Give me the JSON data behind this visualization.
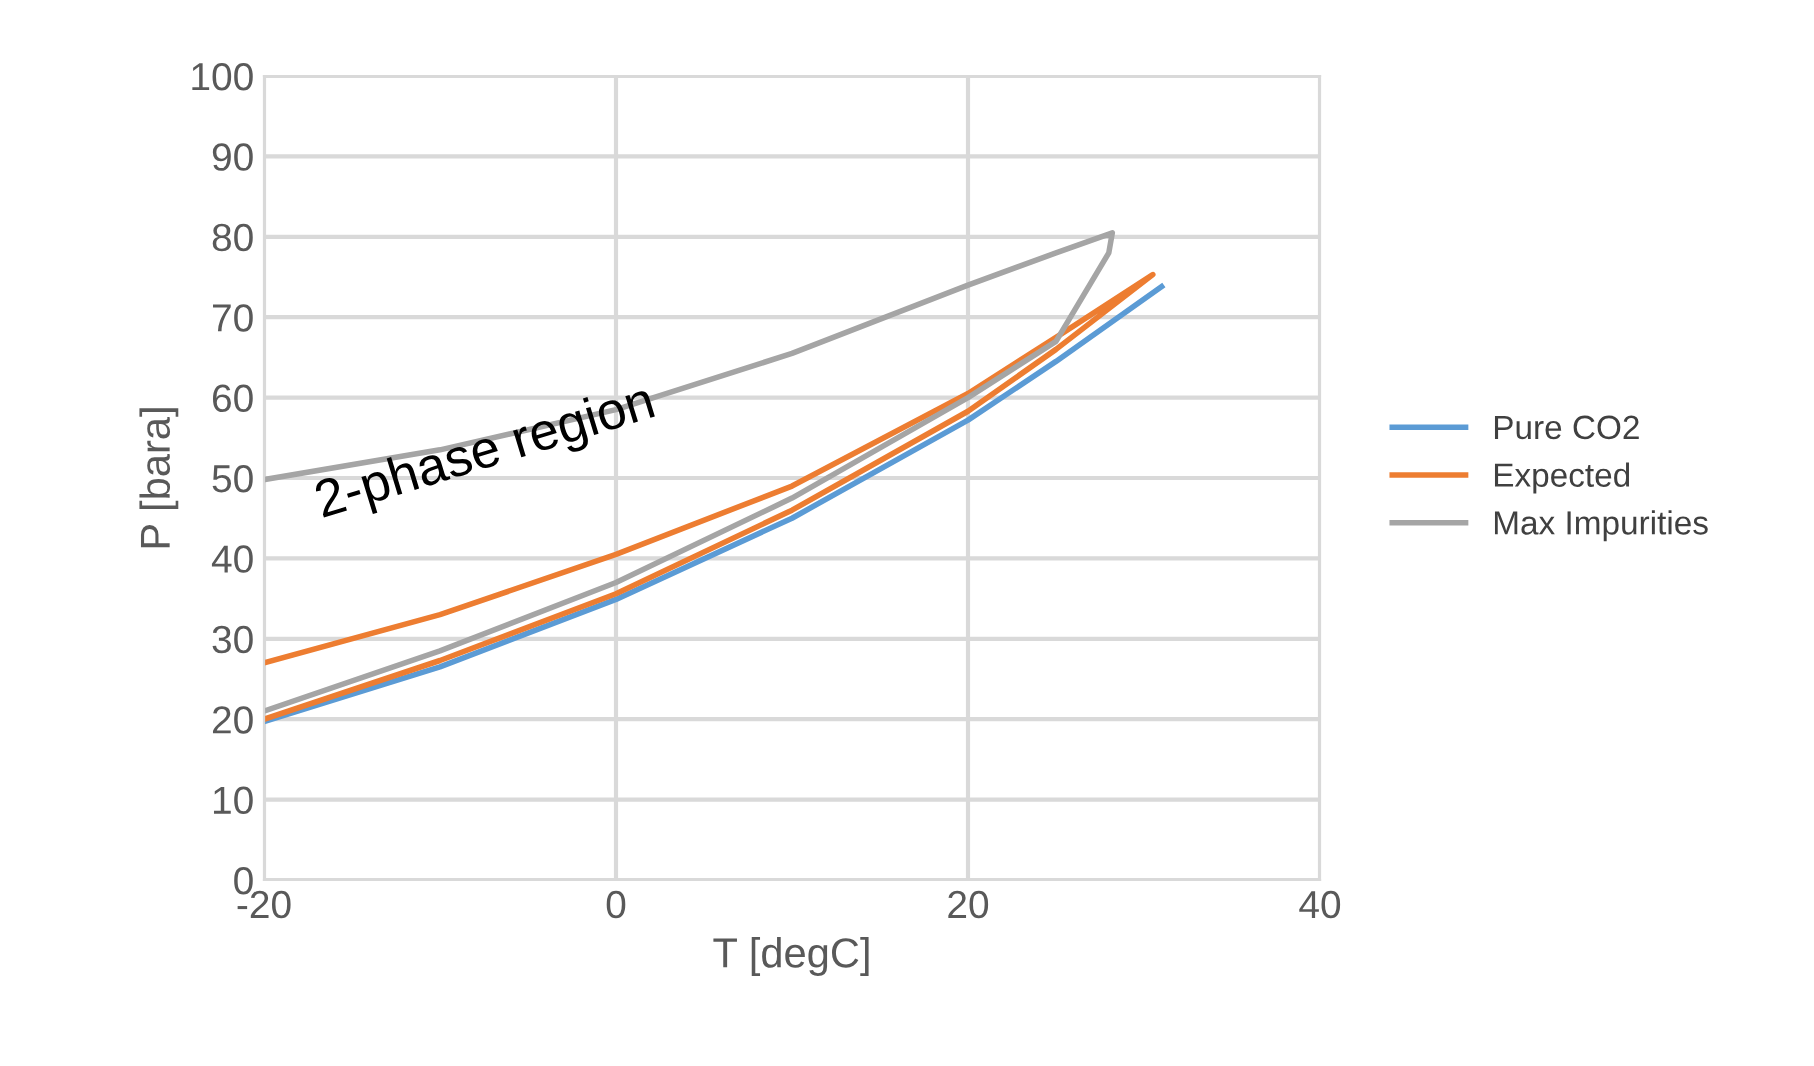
{
  "chart_data": {
    "type": "line",
    "xlabel": "T [degC]",
    "ylabel": "P [bara]",
    "xlim": [
      -20,
      40
    ],
    "xticks": [
      -20,
      0,
      20,
      40
    ],
    "ylim": [
      0,
      100
    ],
    "yticks": [
      0,
      10,
      20,
      30,
      40,
      50,
      60,
      70,
      80,
      90,
      100
    ],
    "grid": true,
    "legend": "right",
    "marker": "none",
    "line_style": "solid",
    "annotations": [
      "2-phase region"
    ],
    "series": [
      {
        "name": "Pure CO2",
        "color": "#5b9bd5",
        "x": [
          -20,
          -10,
          0,
          10,
          20,
          25,
          31
        ],
        "values": [
          19.7,
          26.5,
          34.9,
          45.0,
          57.2,
          64.5,
          73.8
        ]
      },
      {
        "name": "Expected",
        "color": "#ed7d31",
        "x": [
          -20,
          -10,
          0,
          10,
          20,
          25,
          30.5,
          25,
          20,
          10,
          0,
          -10,
          -20
        ],
        "values": [
          27,
          33,
          40.5,
          49,
          60.5,
          67.5,
          75.3,
          66,
          58.3,
          46,
          35.6,
          27.3,
          20
        ]
      },
      {
        "name": "Max Impurities",
        "color": "#a5a5a5",
        "x": [
          -20,
          -10,
          0,
          10,
          20,
          25,
          28.2,
          28,
          25,
          20,
          10,
          0,
          -10,
          -20
        ],
        "values": [
          49.8,
          53.5,
          58.5,
          65.5,
          74,
          78,
          80.5,
          78,
          67,
          60,
          47.5,
          37,
          28.5,
          21
        ]
      }
    ]
  }
}
